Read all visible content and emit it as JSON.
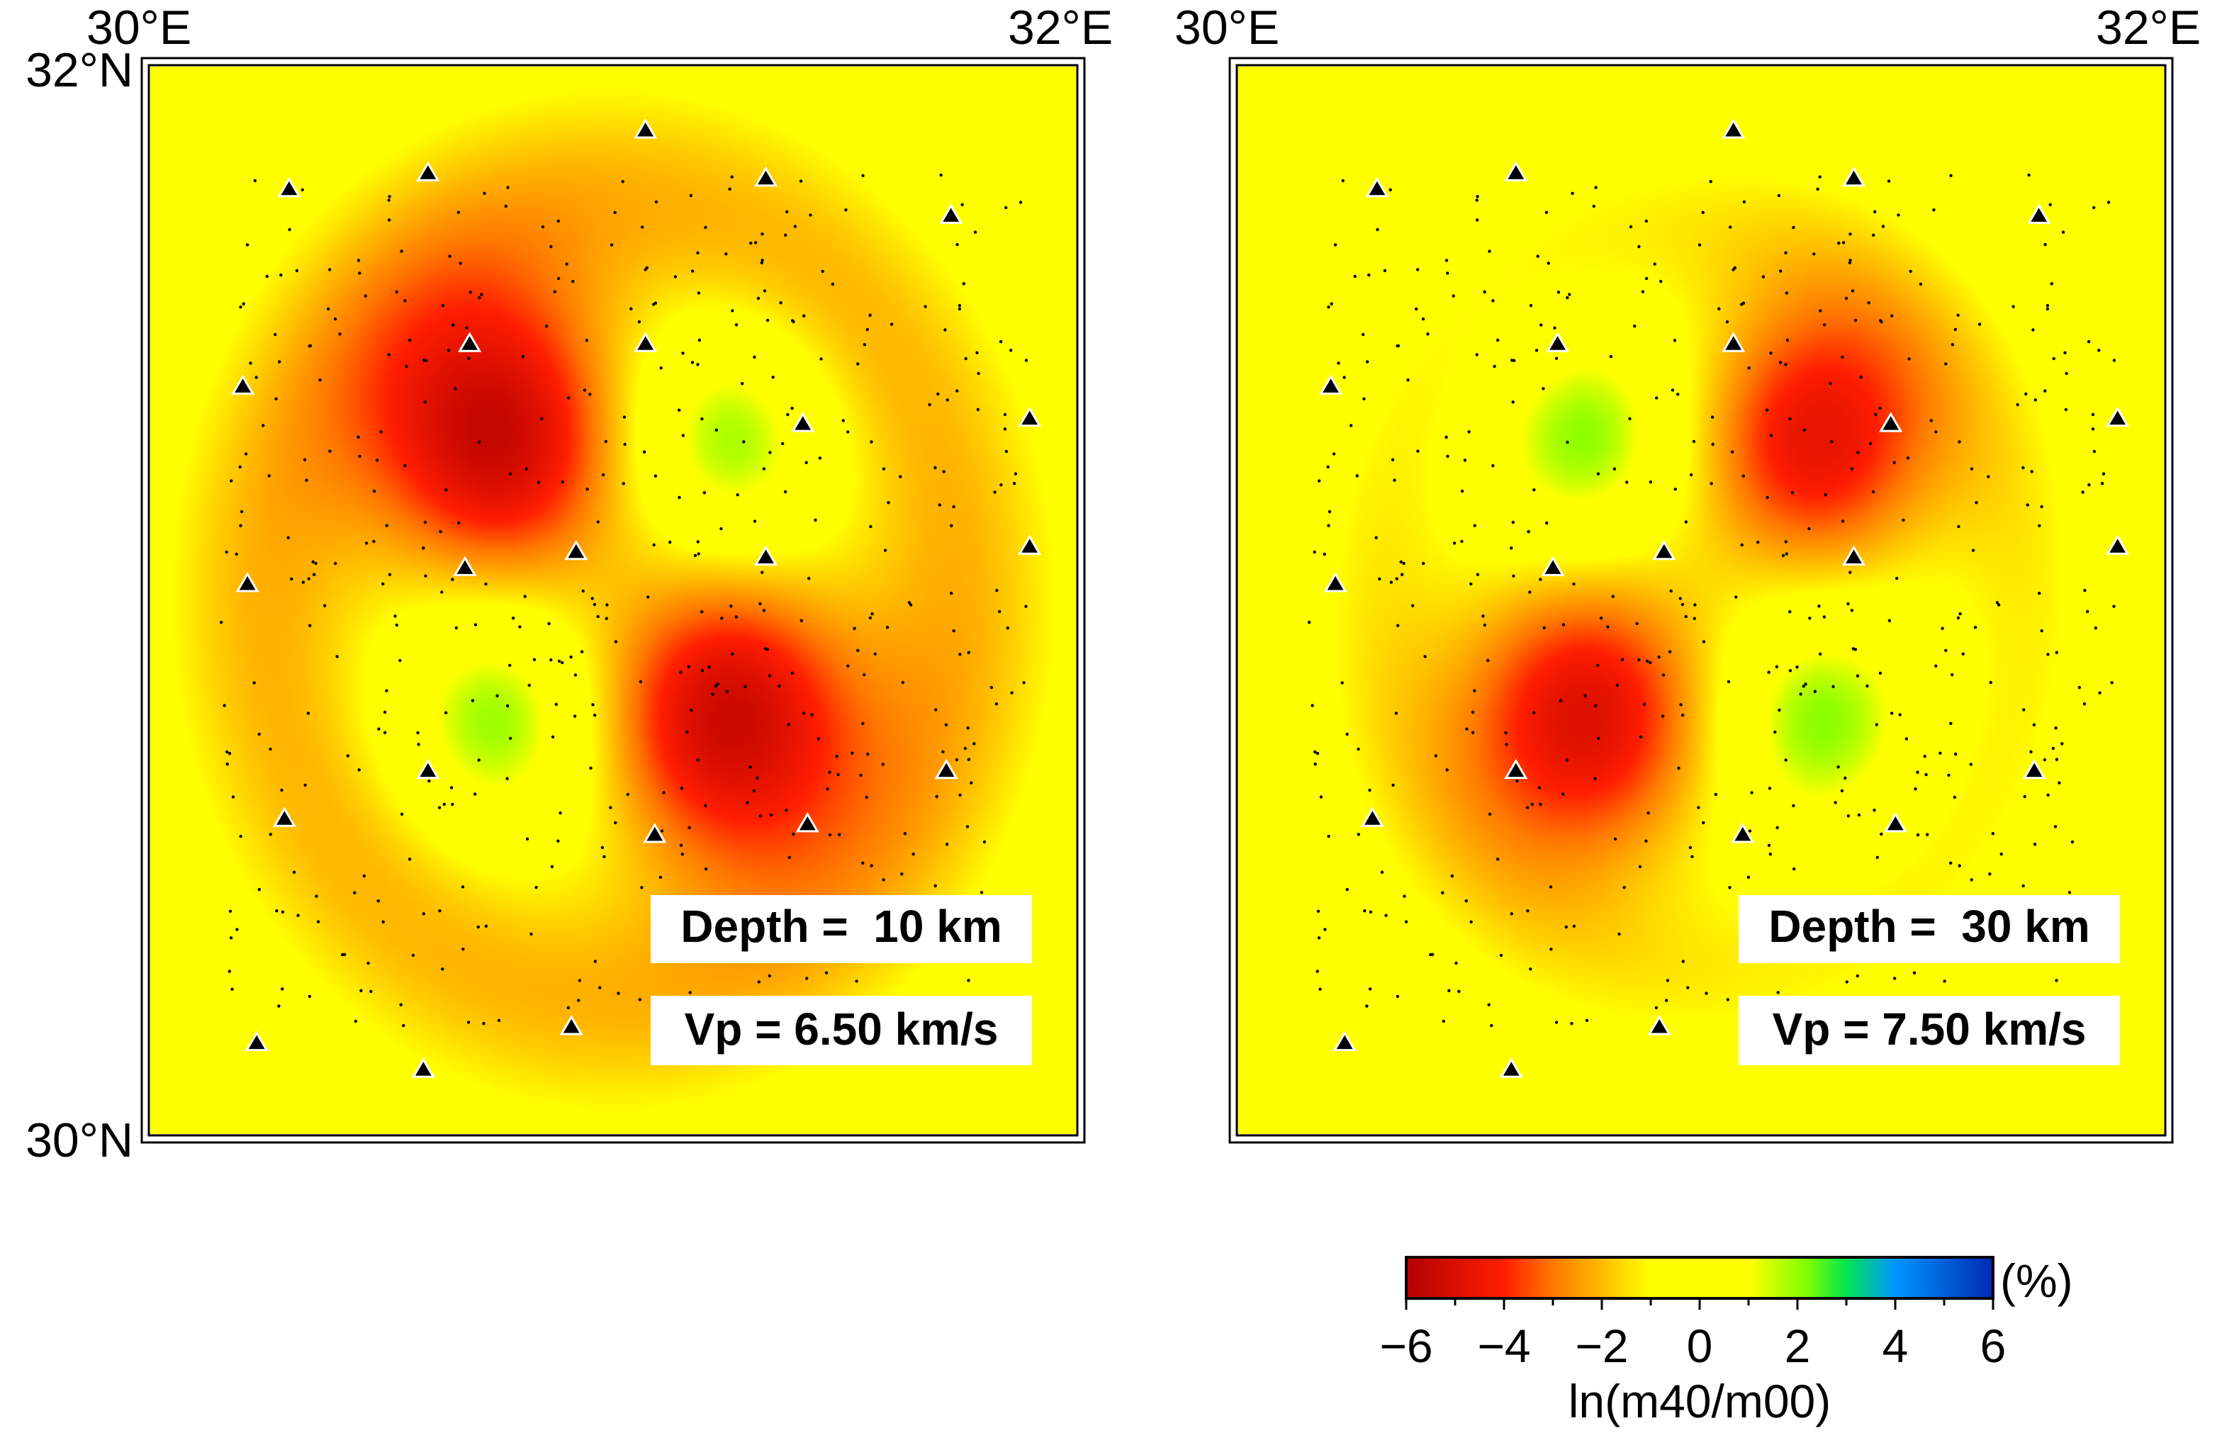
{
  "figure": {
    "colormap": {
      "stops": [
        {
          "value": -6,
          "color": "#b40000"
        },
        {
          "value": -4,
          "color": "#ff1e00"
        },
        {
          "value": -3,
          "color": "#ff7800"
        },
        {
          "value": -1,
          "color": "#ffff00"
        },
        {
          "value": 0,
          "color": "#ffff00"
        },
        {
          "value": 1,
          "color": "#ffff00"
        },
        {
          "value": 2.2,
          "color": "#7dff00"
        },
        {
          "value": 3,
          "color": "#00e650"
        },
        {
          "value": 4,
          "color": "#0096ff"
        },
        {
          "value": 6,
          "color": "#0028b4"
        }
      ]
    },
    "colorbar": {
      "ticks": [
        "−6",
        "−4",
        "−2",
        "0",
        "2",
        "4",
        "6"
      ],
      "tick_values": [
        -6,
        -4,
        -2,
        0,
        2,
        4,
        6
      ],
      "unit": "(%)",
      "label": "ln(m40/m00)"
    },
    "axes": {
      "lon_range": [
        30,
        32
      ],
      "lat_range": [
        30,
        32
      ],
      "lon_labels": [
        "30°E",
        "32°E"
      ],
      "lat_labels": [
        "32°N",
        "30°N"
      ]
    },
    "stations": [
      [
        30.3,
        31.77
      ],
      [
        30.6,
        31.8
      ],
      [
        31.07,
        31.88
      ],
      [
        31.33,
        31.79
      ],
      [
        31.73,
        31.72
      ],
      [
        30.69,
        31.48
      ],
      [
        31.07,
        31.48
      ],
      [
        30.2,
        31.4
      ],
      [
        31.41,
        31.33
      ],
      [
        31.9,
        31.34
      ],
      [
        30.68,
        31.06
      ],
      [
        30.92,
        31.09
      ],
      [
        31.33,
        31.08
      ],
      [
        31.9,
        31.1
      ],
      [
        30.21,
        31.03
      ],
      [
        30.6,
        30.68
      ],
      [
        31.72,
        30.68
      ],
      [
        30.29,
        30.59
      ],
      [
        31.09,
        30.56
      ],
      [
        31.42,
        30.58
      ],
      [
        30.91,
        30.2
      ],
      [
        31.29,
        30.21
      ],
      [
        30.23,
        30.17
      ],
      [
        30.59,
        30.12
      ]
    ],
    "panels": [
      {
        "depth_label": "Depth =  10 km",
        "vp_label": "Vp = 6.50 km/s",
        "anomalies": [
          {
            "lon": 30.75,
            "lat": 31.3,
            "amp": -5.3,
            "sigma": 0.2
          },
          {
            "lon": 31.25,
            "lat": 30.78,
            "amp": -5.3,
            "sigma": 0.2
          },
          {
            "lon": 31.25,
            "lat": 31.3,
            "amp": 2.4,
            "sigma": 0.14
          },
          {
            "lon": 30.75,
            "lat": 30.78,
            "amp": 2.4,
            "sigma": 0.14
          }
        ],
        "halo_amp": -2.1,
        "halo_radius": 0.75,
        "halo_width": 0.17
      },
      {
        "depth_label": "Depth =  30 km",
        "vp_label": "Vp = 7.50 km/s",
        "anomalies": [
          {
            "lon": 31.25,
            "lat": 31.3,
            "amp": -4.6,
            "sigma": 0.19
          },
          {
            "lon": 30.75,
            "lat": 30.78,
            "amp": -4.9,
            "sigma": 0.2
          },
          {
            "lon": 30.75,
            "lat": 31.3,
            "amp": 2.4,
            "sigma": 0.14
          },
          {
            "lon": 31.25,
            "lat": 30.78,
            "amp": 2.4,
            "sigma": 0.14
          }
        ],
        "halo_amp": -1.2,
        "halo_radius": 0.7,
        "halo_width": 0.13
      }
    ]
  }
}
